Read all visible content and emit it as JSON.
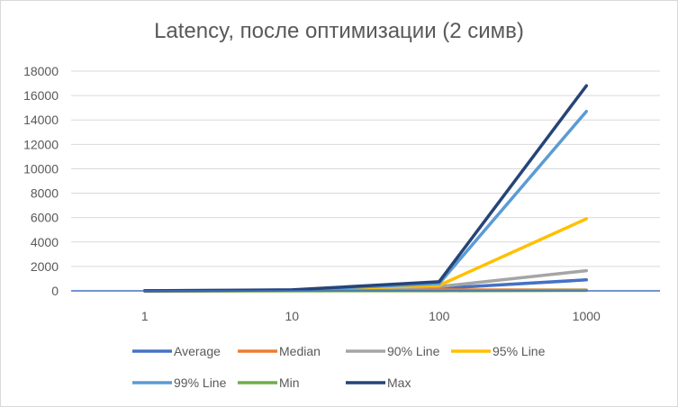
{
  "chart_data": {
    "type": "line",
    "title": "Latency, после оптимизации (2 симв)",
    "categories": [
      "1",
      "10",
      "100",
      "1000"
    ],
    "ylim": [
      0,
      18000
    ],
    "yticks": [
      0,
      2000,
      4000,
      6000,
      8000,
      10000,
      12000,
      14000,
      16000,
      18000
    ],
    "grid": true,
    "legend_position": "bottom",
    "series": [
      {
        "name": "Average",
        "color": "#4472C4",
        "values": [
          2,
          20,
          200,
          900
        ]
      },
      {
        "name": "Median",
        "color": "#ED7D31",
        "values": [
          2,
          15,
          80,
          60
        ]
      },
      {
        "name": "90% Line",
        "color": "#A5A5A5",
        "values": [
          3,
          30,
          350,
          1650
        ]
      },
      {
        "name": "95% Line",
        "color": "#FFC000",
        "values": [
          4,
          40,
          450,
          5900
        ]
      },
      {
        "name": "99% Line",
        "color": "#5B9BD5",
        "values": [
          5,
          60,
          600,
          14700
        ]
      },
      {
        "name": "Min",
        "color": "#70AD47",
        "values": [
          1,
          3,
          10,
          40
        ]
      },
      {
        "name": "Max",
        "color": "#264478",
        "values": [
          8,
          80,
          750,
          16800
        ]
      }
    ]
  }
}
